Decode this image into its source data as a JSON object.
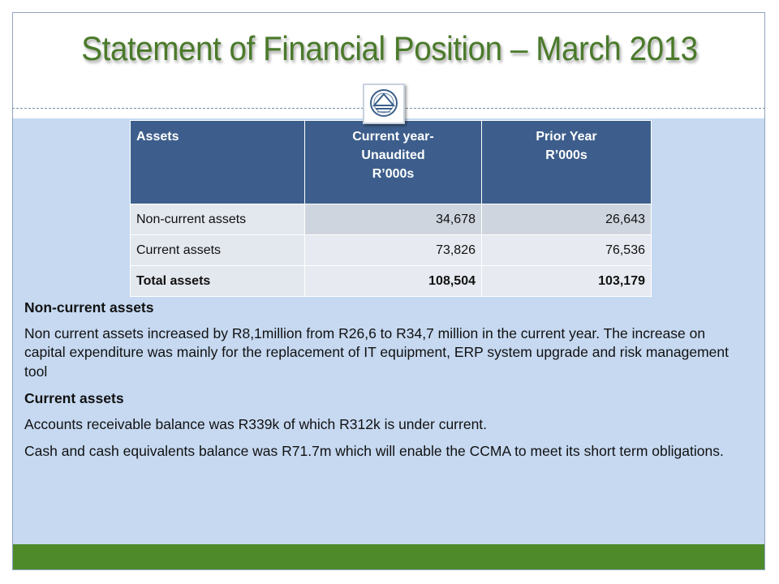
{
  "slide": {
    "title": "Statement of Financial Position – March 2013",
    "colors": {
      "title": "#4a7a2a",
      "table_header": "#3d5e8c",
      "panel": "#c6d9f1",
      "footer_bar": "#4e8a2a"
    }
  },
  "logo": {
    "icon": "organisation-logo-icon"
  },
  "table": {
    "headers": {
      "assets": "Assets",
      "current_line1": "Current year-",
      "current_line2": "Unaudited",
      "current_line3": "R’000s",
      "prior_line1": "Prior Year",
      "prior_line2": "R’000s"
    },
    "rows": [
      {
        "label": "Non-current assets",
        "current": "34,678",
        "prior": "26,643"
      },
      {
        "label": "Current assets",
        "current": "73,826",
        "prior": "76,536"
      },
      {
        "label": "Total assets",
        "current": "108,504",
        "prior": "103,179"
      }
    ]
  },
  "notes": {
    "noncurrent_heading": "Non-current assets",
    "noncurrent_text": "Non current assets increased by R8,1million from R26,6 to R34,7 million in the current year. The increase  on  capital expenditure was mainly for the replacement of IT equipment, ERP system upgrade and risk management tool",
    "current_heading": "Current assets",
    "current_text_1": "Accounts receivable balance was R339k of which R312k is under current.",
    "current_text_2": "Cash and cash equivalents balance was R71.7m which will enable the CCMA to meet its short term obligations."
  }
}
